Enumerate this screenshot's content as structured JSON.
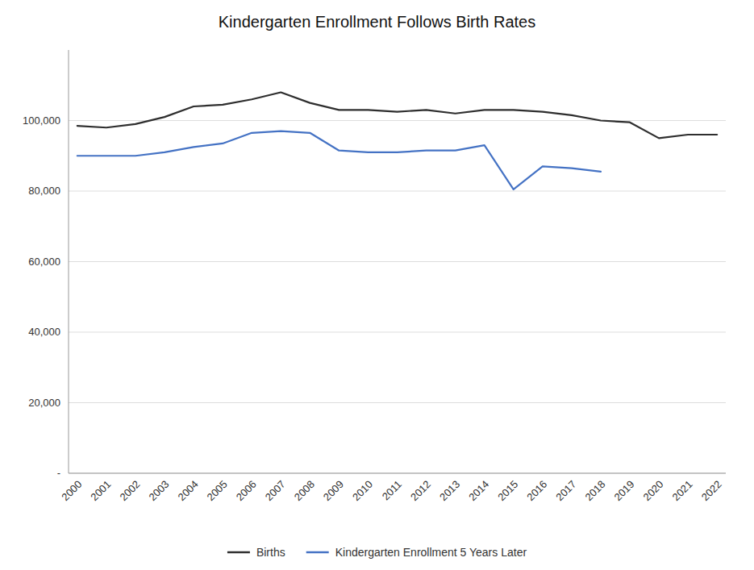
{
  "chart_data": {
    "type": "line",
    "title": "Kindergarten Enrollment Follows Birth Rates",
    "x": [
      2000,
      2001,
      2002,
      2003,
      2004,
      2005,
      2006,
      2007,
      2008,
      2009,
      2010,
      2011,
      2012,
      2013,
      2014,
      2015,
      2016,
      2017,
      2018,
      2019,
      2020,
      2021,
      2022
    ],
    "series": [
      {
        "name": "Births",
        "color": "#2e2e2e",
        "values": [
          98500,
          98000,
          99000,
          101000,
          104000,
          104500,
          106000,
          108000,
          105000,
          103000,
          103000,
          102500,
          103000,
          102000,
          103000,
          103000,
          102500,
          101500,
          100000,
          99500,
          95000,
          96000,
          96000
        ]
      },
      {
        "name": "Kindergarten Enrollment 5 Years Later",
        "color": "#4472c4",
        "values": [
          90000,
          90000,
          90000,
          91000,
          92500,
          93500,
          96500,
          97000,
          96500,
          91500,
          91000,
          91000,
          91500,
          91500,
          93000,
          80500,
          87000,
          86500,
          85500,
          null,
          null,
          null,
          null
        ]
      }
    ],
    "xlim": [
      1999.7,
      2022.3
    ],
    "xticks": [
      2000,
      2001,
      2002,
      2003,
      2004,
      2005,
      2006,
      2007,
      2008,
      2009,
      2010,
      2011,
      2012,
      2013,
      2014,
      2015,
      2016,
      2017,
      2018,
      2019,
      2020,
      2021,
      2022
    ],
    "ylim": [
      0,
      120000
    ],
    "yticks": [
      {
        "value": 0,
        "label": "-"
      },
      {
        "value": 20000,
        "label": "20,000"
      },
      {
        "value": 40000,
        "label": "40,000"
      },
      {
        "value": 60000,
        "label": "60,000"
      },
      {
        "value": 80000,
        "label": "80,000"
      },
      {
        "value": 100000,
        "label": "100,000"
      }
    ],
    "grid": true,
    "legend": "bottom"
  }
}
